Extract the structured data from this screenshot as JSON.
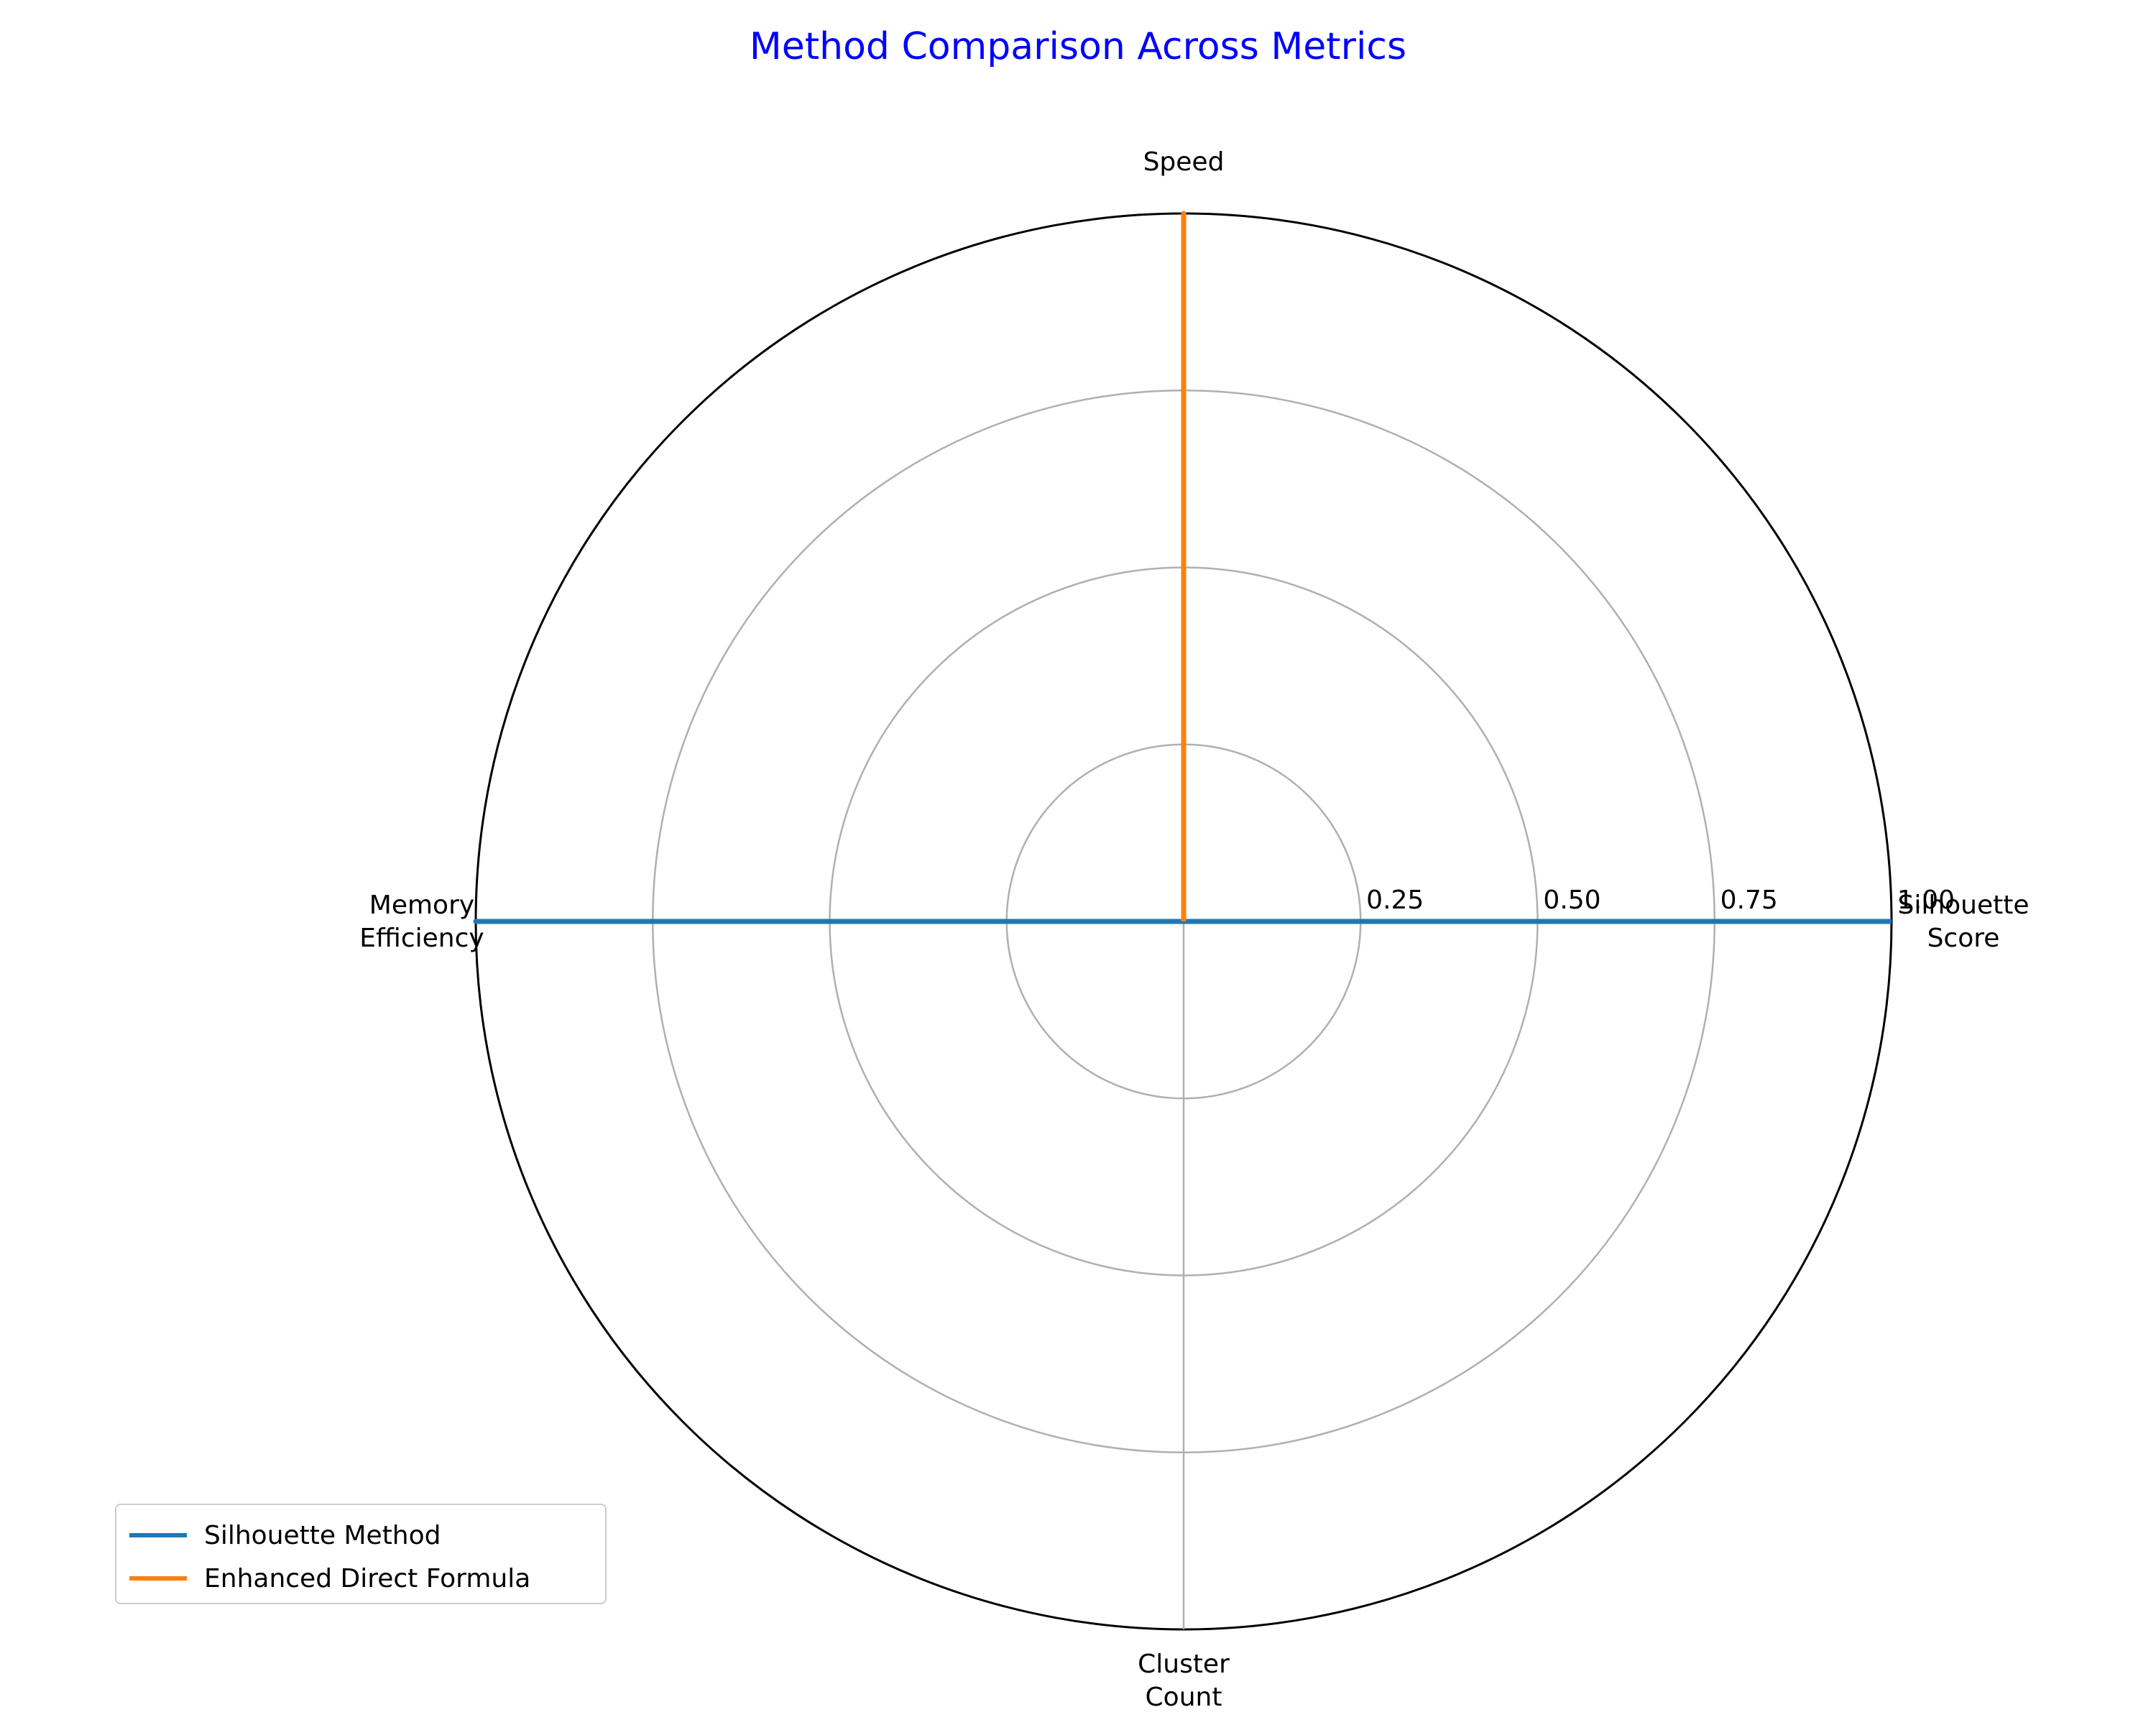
{
  "chart_data": {
    "type": "radar",
    "title": "Method Comparison Across Metrics",
    "title_color": "#0000ff",
    "categories": [
      "Silhouette\nScore",
      "Speed",
      "Memory\nEfficiency",
      "Cluster\nCount"
    ],
    "radial_ticks": [
      "0.25",
      "0.50",
      "0.75",
      "1.00"
    ],
    "radial_tick_values": [
      0.25,
      0.5,
      0.75,
      1.0
    ],
    "rlim": [
      0,
      1
    ],
    "grid": true,
    "legend_position": "bottom-left",
    "series": [
      {
        "name": "Silhouette Method",
        "color": "#1f77b4",
        "values": [
          1.0,
          0.0,
          1.0,
          0.0
        ]
      },
      {
        "name": "Enhanced Direct Formula",
        "color": "#ff7f0e",
        "values": [
          0.0,
          1.0,
          0.0,
          0.0
        ]
      }
    ]
  }
}
